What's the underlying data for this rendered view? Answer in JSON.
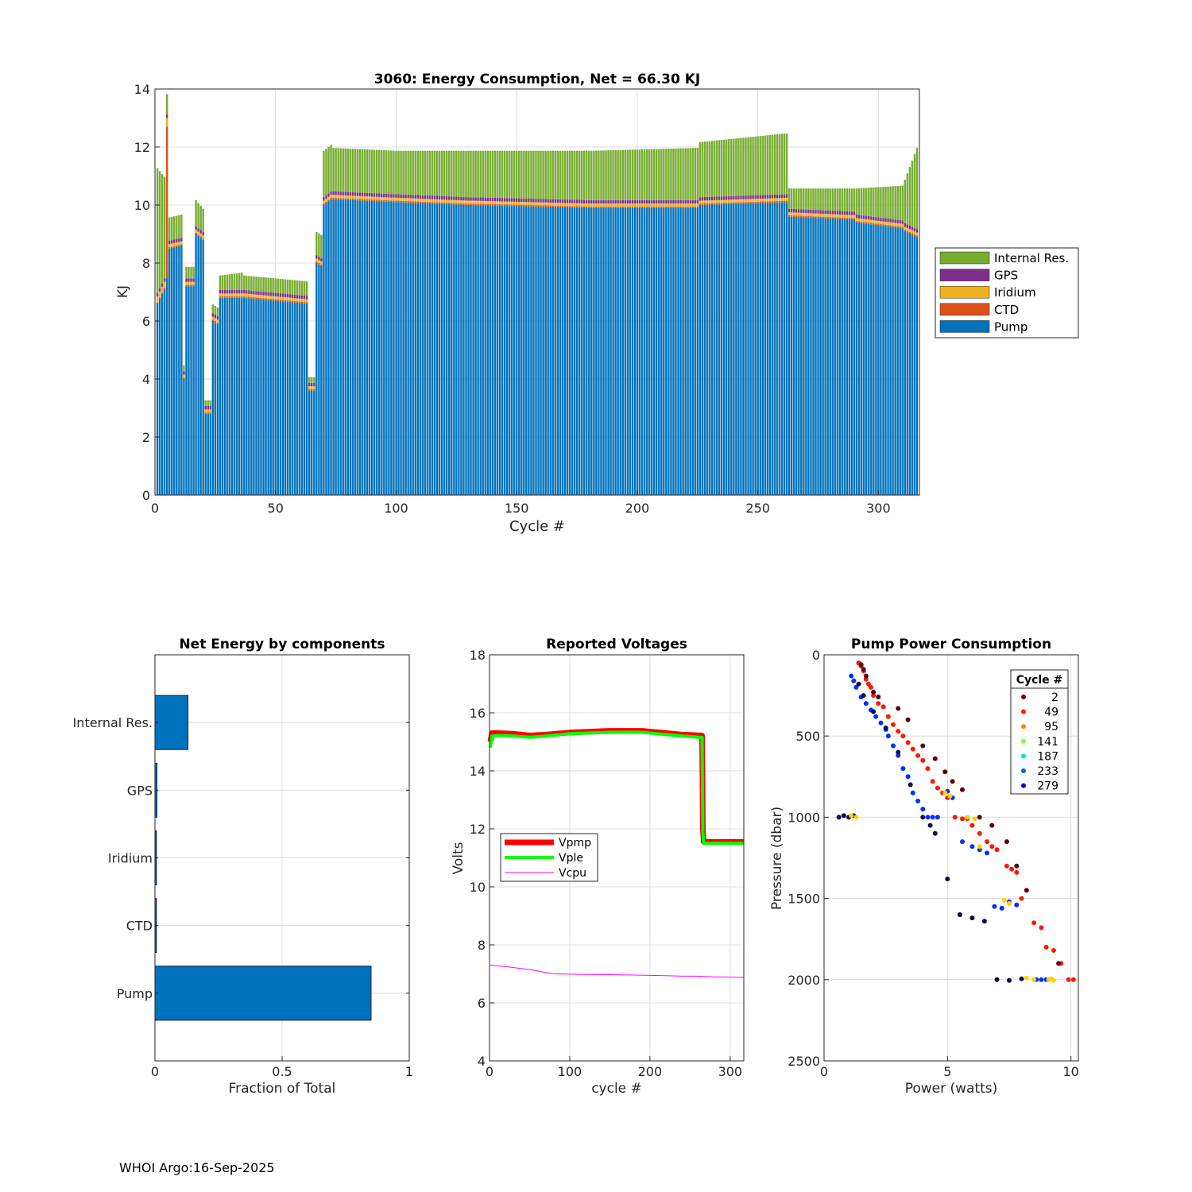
{
  "footer": "WHOI Argo:16-Sep-2025",
  "chart_data": [
    {
      "id": "energy",
      "type": "bar",
      "stacked": true,
      "title": "3060: Energy Consumption,  Net =  66.30 KJ",
      "xlabel": "Cycle #",
      "ylabel": "KJ",
      "xlim": [
        0,
        317
      ],
      "ylim": [
        0,
        14
      ],
      "xticks": [
        0,
        50,
        100,
        150,
        200,
        250,
        300
      ],
      "yticks": [
        0,
        2,
        4,
        6,
        8,
        10,
        12,
        14
      ],
      "grid": true,
      "legend_position": "outside-right",
      "components": [
        {
          "name": "Internal Res.",
          "color": "#77ac30"
        },
        {
          "name": "GPS",
          "color": "#7e2f8e"
        },
        {
          "name": "Iridium",
          "color": "#edb120"
        },
        {
          "name": "CTD",
          "color": "#d95319"
        },
        {
          "name": "Pump",
          "color": "#0072bd"
        }
      ],
      "profile": {
        "pump_segments": [
          [
            1,
            4,
            6.6,
            7.1
          ],
          [
            5,
            5,
            7.5,
            7.5
          ],
          [
            6,
            11,
            8.5,
            8.6
          ],
          [
            12,
            12,
            4.0,
            4.0
          ],
          [
            13,
            16,
            7.2,
            7.2
          ],
          [
            17,
            20,
            9.0,
            8.8
          ],
          [
            21,
            23,
            2.8,
            2.8
          ],
          [
            24,
            26,
            6.0,
            5.9
          ],
          [
            27,
            36,
            6.8,
            6.8
          ],
          [
            37,
            63,
            6.8,
            6.6
          ],
          [
            64,
            66,
            3.6,
            3.6
          ],
          [
            67,
            69,
            8.0,
            7.9
          ],
          [
            70,
            73,
            10.0,
            10.2
          ],
          [
            74,
            100,
            10.2,
            10.1
          ],
          [
            101,
            130,
            10.1,
            10.0
          ],
          [
            131,
            180,
            10.0,
            9.9
          ],
          [
            181,
            225,
            9.9,
            9.9
          ],
          [
            226,
            262,
            10.0,
            10.1
          ],
          [
            263,
            290,
            9.6,
            9.5
          ],
          [
            291,
            310,
            9.4,
            9.2
          ],
          [
            311,
            316,
            9.1,
            8.9
          ]
        ],
        "ctd_segments": [
          [
            1,
            4,
            0.05,
            0.05
          ],
          [
            5,
            5,
            5.2,
            5.2
          ],
          [
            6,
            316,
            0.05,
            0.05
          ]
        ],
        "iridium_segments": [
          [
            1,
            4,
            0.2,
            0.2
          ],
          [
            5,
            5,
            0.3,
            0.3
          ],
          [
            6,
            316,
            0.1,
            0.1
          ]
        ],
        "gps_segments": [
          [
            1,
            316,
            0.12,
            0.12
          ]
        ],
        "internal_segments": [
          [
            1,
            4,
            4.3,
            3.5
          ],
          [
            5,
            5,
            0.7,
            0.7
          ],
          [
            6,
            11,
            0.8,
            0.8
          ],
          [
            12,
            12,
            0.2,
            0.2
          ],
          [
            13,
            16,
            0.4,
            0.4
          ],
          [
            17,
            20,
            0.9,
            0.8
          ],
          [
            21,
            23,
            0.2,
            0.2
          ],
          [
            24,
            26,
            0.3,
            0.3
          ],
          [
            27,
            36,
            0.5,
            0.6
          ],
          [
            37,
            63,
            0.5,
            0.5
          ],
          [
            64,
            66,
            0.2,
            0.2
          ],
          [
            67,
            69,
            0.8,
            0.8
          ],
          [
            70,
            73,
            1.6,
            1.6
          ],
          [
            74,
            100,
            1.5,
            1.5
          ],
          [
            101,
            130,
            1.5,
            1.6
          ],
          [
            131,
            180,
            1.6,
            1.7
          ],
          [
            181,
            225,
            1.7,
            1.8
          ],
          [
            226,
            262,
            1.9,
            2.1
          ],
          [
            263,
            290,
            0.7,
            0.8
          ],
          [
            291,
            310,
            0.9,
            1.2
          ],
          [
            311,
            316,
            1.5,
            2.8
          ]
        ]
      }
    },
    {
      "id": "net",
      "type": "bar",
      "orientation": "horizontal",
      "title": "Net Energy by components",
      "xlabel": "Fraction of Total",
      "xlim": [
        0,
        1
      ],
      "xticks": [
        0,
        0.5,
        1
      ],
      "xtick_labels": [
        "0",
        "0.5",
        "1"
      ],
      "categories": [
        "Internal Res.",
        "GPS",
        "Iridium",
        "CTD",
        "Pump"
      ],
      "values": [
        0.13,
        0.008,
        0.006,
        0.006,
        0.85
      ],
      "bar_color": "#0072bd"
    },
    {
      "id": "volts",
      "type": "line",
      "title": "Reported Voltages",
      "xlabel": "cycle #",
      "ylabel": "Volts",
      "xlim": [
        0,
        317
      ],
      "ylim": [
        4,
        18
      ],
      "xticks": [
        0,
        100,
        200,
        300
      ],
      "yticks": [
        4,
        6,
        8,
        10,
        12,
        14,
        16,
        18
      ],
      "legend_position": "center-left",
      "series": [
        {
          "name": "Vpmp",
          "color": "#ff0000",
          "width": 7,
          "x": [
            1,
            3,
            10,
            30,
            50,
            70,
            100,
            150,
            190,
            220,
            240,
            265,
            266,
            267,
            317
          ],
          "y": [
            15.0,
            15.3,
            15.3,
            15.28,
            15.22,
            15.25,
            15.32,
            15.38,
            15.38,
            15.3,
            15.25,
            15.22,
            12.0,
            11.55,
            11.55
          ]
        },
        {
          "name": "Vple",
          "color": "#00ff00",
          "width": 4,
          "x": [
            1,
            3,
            10,
            30,
            50,
            70,
            100,
            150,
            190,
            220,
            240,
            265,
            266,
            267,
            317
          ],
          "y": [
            14.8,
            15.2,
            15.22,
            15.2,
            15.16,
            15.2,
            15.28,
            15.33,
            15.33,
            15.25,
            15.2,
            15.15,
            11.9,
            11.5,
            11.5
          ]
        },
        {
          "name": "Vcpu",
          "color": "#ff00ff",
          "width": 1,
          "x": [
            1,
            20,
            50,
            70,
            80,
            120,
            180,
            220,
            240,
            260,
            280,
            317
          ],
          "y": [
            7.3,
            7.25,
            7.15,
            7.05,
            7.0,
            6.98,
            6.96,
            6.94,
            6.92,
            6.92,
            6.9,
            6.88
          ]
        }
      ]
    },
    {
      "id": "pump",
      "type": "scatter",
      "title": "Pump Power Consumption",
      "xlabel": "Power (watts)",
      "ylabel": "Pressure (dbar)",
      "xlim": [
        0,
        10.3
      ],
      "ylim": [
        0,
        2500
      ],
      "y_reversed": true,
      "xticks": [
        0,
        5,
        10
      ],
      "yticks": [
        0,
        500,
        1000,
        1500,
        2000,
        2500
      ],
      "legend_title": "Cycle #",
      "legend_position": "top-right",
      "legend": [
        {
          "label": "2",
          "color": "#7f0000"
        },
        {
          "label": "49",
          "color": "#ff2000"
        },
        {
          "label": "95",
          "color": "#ff8000"
        },
        {
          "label": "141",
          "color": "#7fff40"
        },
        {
          "label": "187",
          "color": "#00e0e0"
        },
        {
          "label": "233",
          "color": "#0060ff"
        },
        {
          "label": "279",
          "color": "#0000d0"
        }
      ],
      "series": [
        {
          "name": "high",
          "color": "#ff1800",
          "x": [
            1.4,
            1.5,
            1.6,
            1.7,
            1.8,
            1.9,
            2.0,
            2.2,
            2.4,
            2.6,
            2.8,
            3.0,
            3.2,
            3.4,
            3.6,
            3.8,
            4.0,
            4.2,
            4.4,
            4.6,
            4.8,
            5.0,
            5.3,
            5.6,
            5.8,
            6.0,
            6.3,
            6.6,
            6.8,
            7.0,
            7.4,
            7.6,
            7.8,
            8.0,
            8.5,
            8.8,
            9.0,
            9.3,
            9.6,
            9.9,
            10.1
          ],
          "y": [
            50,
            70,
            100,
            150,
            180,
            200,
            250,
            300,
            320,
            380,
            430,
            470,
            500,
            540,
            580,
            620,
            650,
            700,
            780,
            820,
            850,
            880,
            1000,
            1010,
            1010,
            1050,
            1100,
            1150,
            1180,
            1200,
            1300,
            1320,
            1340,
            1500,
            1650,
            1680,
            1800,
            1820,
            1900,
            2000,
            2000
          ]
        },
        {
          "name": "dark-high",
          "color": "#5a0010",
          "x": [
            1.5,
            1.6,
            1.7,
            2.0,
            2.2,
            3.0,
            3.4,
            4.0,
            4.5,
            4.9,
            5.2,
            5.6,
            6.3,
            6.8,
            7.4,
            7.8,
            8.2,
            9.5
          ],
          "y": [
            60,
            90,
            130,
            230,
            260,
            330,
            400,
            560,
            640,
            720,
            780,
            830,
            1000,
            1050,
            1150,
            1300,
            1450,
            1900
          ]
        },
        {
          "name": "low",
          "color": "#0030ff",
          "x": [
            1.1,
            1.2,
            1.3,
            1.5,
            1.7,
            1.9,
            2.1,
            2.3,
            2.5,
            2.6,
            2.8,
            3.0,
            3.2,
            3.4,
            3.6,
            3.8,
            4.0,
            4.2,
            4.4,
            4.6,
            5.0,
            5.2,
            5.6,
            6.0,
            6.3,
            6.6,
            6.9,
            7.2,
            7.5,
            7.8,
            8.6,
            8.8,
            9.0
          ],
          "y": [
            130,
            160,
            200,
            260,
            300,
            340,
            380,
            420,
            460,
            500,
            560,
            620,
            700,
            750,
            850,
            900,
            950,
            1000,
            1000,
            1000,
            840,
            880,
            1150,
            1180,
            1200,
            1220,
            1550,
            1560,
            1520,
            1540,
            2000,
            2000,
            2000
          ]
        },
        {
          "name": "dark-low",
          "color": "#0a0a50",
          "x": [
            0.6,
            0.8,
            1.0,
            1.2,
            1.4,
            1.6,
            2.0,
            2.5,
            3.0,
            3.5,
            4.0,
            4.3,
            4.5,
            5.0,
            5.5,
            6.0,
            6.5,
            7.0,
            7.5,
            8.0
          ],
          "y": [
            1000,
            990,
            1000,
            990,
            180,
            250,
            350,
            450,
            600,
            800,
            1000,
            1050,
            1100,
            1380,
            1600,
            1620,
            1640,
            2000,
            2005,
            1995
          ]
        },
        {
          "name": "mid",
          "color": "#ffd000",
          "x": [
            1.1,
            1.3,
            4.9,
            5.1,
            5.8,
            6.1,
            6.3,
            7.3,
            7.5,
            8.2,
            8.5,
            9.1,
            9.2,
            9.3
          ],
          "y": [
            990,
            1000,
            850,
            870,
            1000,
            1010,
            1180,
            1510,
            1530,
            1990,
            2000,
            2000,
            1995,
            2005
          ]
        }
      ]
    }
  ]
}
